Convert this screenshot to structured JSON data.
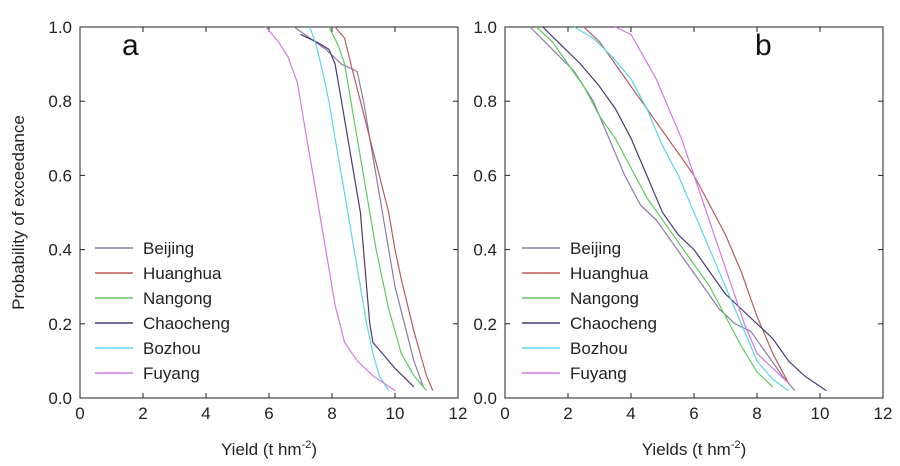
{
  "chart_data": [
    {
      "type": "line",
      "panel_label": "a",
      "xlabel": "Yield (t hm",
      "xlabel_sup": "-2",
      "xlabel_end": ")",
      "ylabel": "Probability of exceedance",
      "xlim": [
        0,
        12
      ],
      "ylim": [
        0,
        1.0
      ],
      "xticks": [
        "0",
        "2",
        "4",
        "6",
        "8",
        "10",
        "12"
      ],
      "yticks": [
        "0.0",
        "0.2",
        "0.4",
        "0.6",
        "0.8",
        "1.0"
      ],
      "legend": "center-left",
      "series": [
        {
          "name": "Beijing",
          "color": "#8c7aa8",
          "x": [
            6.8,
            7.3,
            7.8,
            8.3,
            8.8,
            9.0,
            9.2,
            9.4,
            9.6,
            9.8,
            10.0,
            10.3,
            10.6,
            10.9
          ],
          "y": [
            1.0,
            0.97,
            0.94,
            0.9,
            0.88,
            0.8,
            0.7,
            0.6,
            0.5,
            0.4,
            0.3,
            0.2,
            0.1,
            0.03
          ]
        },
        {
          "name": "Huanghua",
          "color": "#b85c5c",
          "x": [
            8.1,
            8.4,
            8.6,
            8.9,
            9.2,
            9.5,
            9.8,
            10.0,
            10.2,
            10.4,
            10.6,
            10.8,
            11.0,
            11.2
          ],
          "y": [
            1.0,
            0.97,
            0.9,
            0.8,
            0.7,
            0.6,
            0.5,
            0.4,
            0.32,
            0.25,
            0.18,
            0.12,
            0.06,
            0.02
          ]
        },
        {
          "name": "Nangong",
          "color": "#5ec95e",
          "x": [
            7.9,
            8.2,
            8.4,
            8.6,
            8.8,
            9.0,
            9.2,
            9.4,
            9.6,
            9.8,
            10.0,
            10.2,
            10.6,
            11.0
          ],
          "y": [
            1.0,
            0.95,
            0.9,
            0.8,
            0.7,
            0.6,
            0.5,
            0.4,
            0.32,
            0.24,
            0.18,
            0.12,
            0.06,
            0.02
          ]
        },
        {
          "name": "Chaocheng",
          "color": "#4a3a73",
          "x": [
            7.0,
            7.5,
            7.9,
            8.1,
            8.3,
            8.5,
            8.7,
            8.9,
            9.0,
            9.1,
            9.2,
            9.3,
            9.6,
            10.0,
            10.6
          ],
          "y": [
            0.98,
            0.96,
            0.94,
            0.9,
            0.8,
            0.7,
            0.6,
            0.5,
            0.4,
            0.3,
            0.2,
            0.15,
            0.12,
            0.08,
            0.03
          ]
        },
        {
          "name": "Bozhou",
          "color": "#5ad6e8",
          "x": [
            7.3,
            7.5,
            7.7,
            7.9,
            8.1,
            8.3,
            8.5,
            8.7,
            8.9,
            9.1,
            9.3,
            9.5,
            9.8
          ],
          "y": [
            1.0,
            0.95,
            0.88,
            0.8,
            0.7,
            0.6,
            0.5,
            0.4,
            0.3,
            0.2,
            0.12,
            0.06,
            0.02
          ]
        },
        {
          "name": "Fuyang",
          "color": "#d27ae0",
          "x": [
            5.9,
            6.3,
            6.6,
            6.9,
            7.1,
            7.3,
            7.5,
            7.7,
            7.9,
            8.1,
            8.4,
            8.8,
            9.3,
            10.0
          ],
          "y": [
            1.0,
            0.96,
            0.92,
            0.85,
            0.75,
            0.65,
            0.55,
            0.45,
            0.35,
            0.25,
            0.15,
            0.1,
            0.06,
            0.02
          ]
        }
      ]
    },
    {
      "type": "line",
      "panel_label": "b",
      "xlabel": "Yields (t hm",
      "xlabel_sup": "-2",
      "xlabel_end": ")",
      "ylabel": "",
      "xlim": [
        0,
        12
      ],
      "ylim": [
        0,
        1.0
      ],
      "xticks": [
        "0",
        "2",
        "4",
        "6",
        "8",
        "10",
        "12"
      ],
      "yticks": [
        "0.0",
        "0.2",
        "0.4",
        "0.6",
        "0.8",
        "1.0"
      ],
      "legend": "center-left",
      "series": [
        {
          "name": "Beijing",
          "color": "#8c7aa8",
          "x": [
            0.8,
            1.5,
            2.2,
            2.8,
            3.3,
            3.8,
            4.3,
            4.8,
            5.3,
            5.8,
            6.3,
            6.8,
            7.3,
            7.8,
            8.3,
            8.8,
            9.2
          ],
          "y": [
            1.0,
            0.94,
            0.88,
            0.8,
            0.7,
            0.6,
            0.52,
            0.48,
            0.42,
            0.36,
            0.3,
            0.24,
            0.2,
            0.18,
            0.12,
            0.06,
            0.02
          ]
        },
        {
          "name": "Huanghua",
          "color": "#b85c5c",
          "x": [
            2.5,
            3.0,
            3.5,
            4.0,
            4.5,
            5.0,
            5.5,
            6.0,
            6.5,
            7.0,
            7.5,
            8.0,
            8.5,
            9.0
          ],
          "y": [
            1.0,
            0.96,
            0.9,
            0.84,
            0.78,
            0.72,
            0.66,
            0.6,
            0.52,
            0.44,
            0.34,
            0.22,
            0.12,
            0.04
          ]
        },
        {
          "name": "Nangong",
          "color": "#5ec95e",
          "x": [
            1.0,
            1.5,
            2.0,
            2.5,
            3.0,
            3.5,
            4.0,
            4.5,
            5.0,
            5.5,
            6.0,
            6.5,
            7.0,
            7.5,
            8.0,
            8.5
          ],
          "y": [
            1.0,
            0.96,
            0.9,
            0.84,
            0.76,
            0.7,
            0.62,
            0.54,
            0.48,
            0.42,
            0.36,
            0.3,
            0.22,
            0.14,
            0.07,
            0.03
          ]
        },
        {
          "name": "Chaocheng",
          "color": "#4a3a73",
          "x": [
            1.2,
            1.8,
            2.4,
            3.0,
            3.5,
            4.0,
            4.5,
            5.0,
            5.5,
            6.0,
            6.5,
            7.0,
            7.5,
            8.0,
            8.5,
            9.0,
            9.5,
            10.2
          ],
          "y": [
            1.0,
            0.95,
            0.9,
            0.84,
            0.78,
            0.7,
            0.6,
            0.5,
            0.44,
            0.4,
            0.34,
            0.28,
            0.24,
            0.2,
            0.16,
            0.1,
            0.06,
            0.02
          ]
        },
        {
          "name": "Bozhou",
          "color": "#5ad6e8",
          "x": [
            2.2,
            2.8,
            3.4,
            4.0,
            4.5,
            5.0,
            5.5,
            6.0,
            6.5,
            7.0,
            7.5,
            8.0,
            8.5,
            9.0
          ],
          "y": [
            1.0,
            0.97,
            0.92,
            0.86,
            0.78,
            0.68,
            0.6,
            0.5,
            0.4,
            0.3,
            0.2,
            0.1,
            0.05,
            0.02
          ]
        },
        {
          "name": "Fuyang",
          "color": "#d27ae0",
          "x": [
            3.5,
            4.0,
            4.4,
            4.8,
            5.2,
            5.6,
            6.0,
            6.4,
            6.8,
            7.2,
            7.6,
            8.0,
            8.5,
            9.0
          ],
          "y": [
            1.0,
            0.98,
            0.92,
            0.86,
            0.78,
            0.7,
            0.6,
            0.5,
            0.4,
            0.3,
            0.2,
            0.12,
            0.08,
            0.04
          ]
        }
      ]
    }
  ]
}
